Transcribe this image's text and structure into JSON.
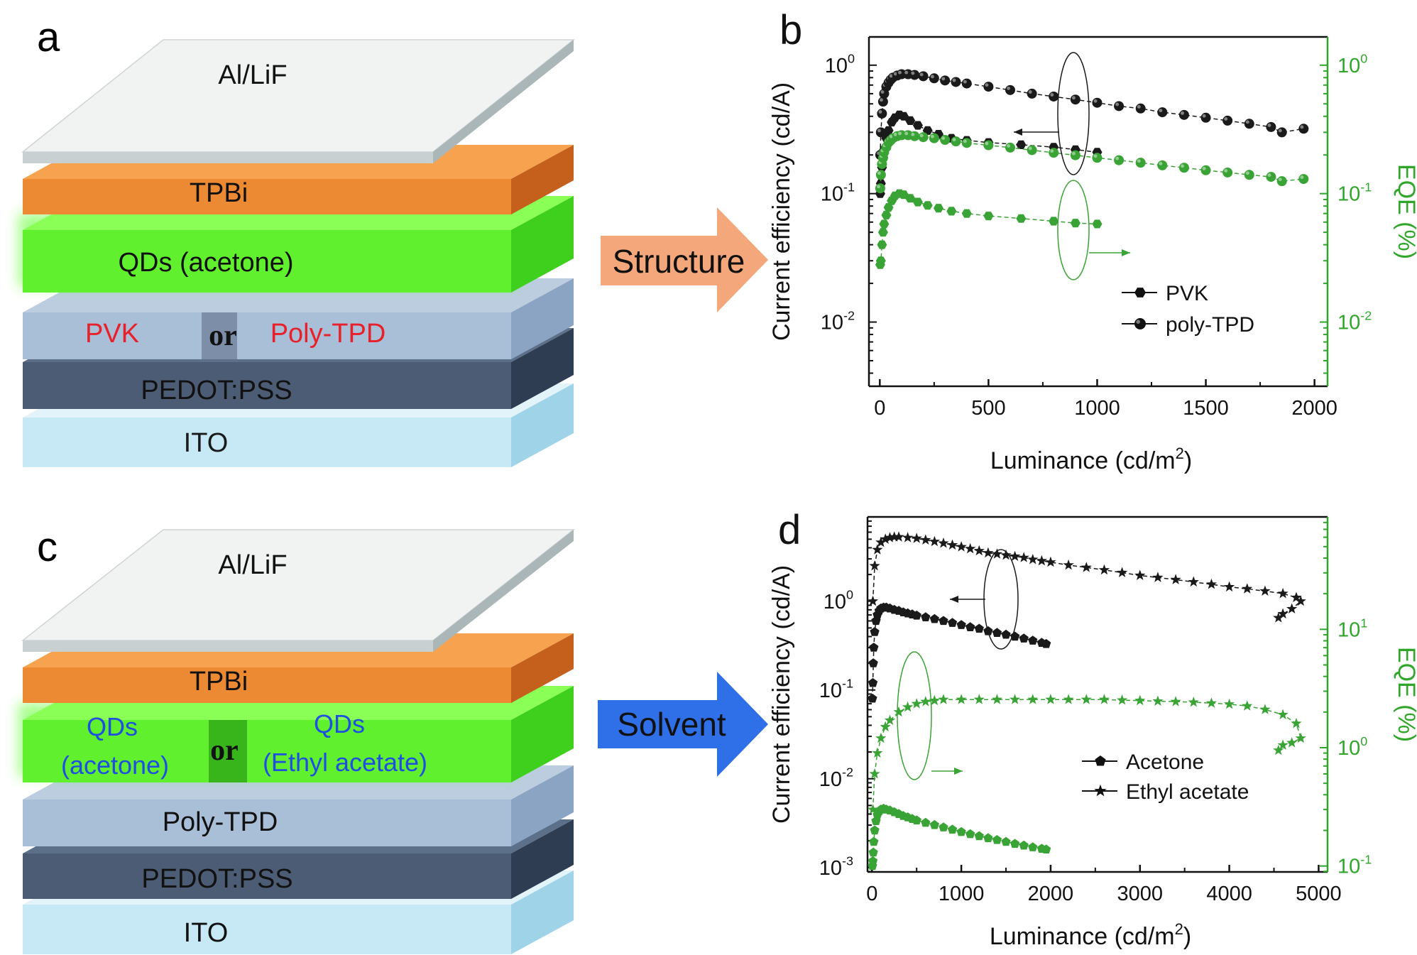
{
  "panels": {
    "a": {
      "letter": "a",
      "layers": {
        "top": "Al/LiF",
        "etl": "TPBi",
        "qd": "QDs (acetone)",
        "htl_left": "PVK",
        "or": "or",
        "htl_right": "Poly-TPD",
        "hil": "PEDOT:PSS",
        "anode": "ITO"
      },
      "arrow_label": "Structure"
    },
    "c": {
      "letter": "c",
      "layers": {
        "top": "Al/LiF",
        "etl": "TPBi",
        "qd_left": "QDs\n(acetone)",
        "qd_left_line1": "QDs",
        "qd_left_line2": "(acetone)",
        "or": "or",
        "qd_right_line1": "QDs",
        "qd_right_line2": "(Ethyl acetate)",
        "htl": "Poly-TPD",
        "hil": "PEDOT:PSS",
        "anode": "ITO"
      },
      "arrow_label": "Solvent"
    }
  },
  "colors": {
    "ce_series": "#1a1a1a",
    "eqe_series": "#3aa335",
    "eqe_axis": "#2fa62a",
    "arrow_structure": "#f4a77a",
    "arrow_solvent": "#2f6fe8",
    "red_text": "#e8202a",
    "blue_text": "#1f4fe0"
  },
  "chart_data": [
    {
      "id": "b",
      "letter": "b",
      "type": "scatter",
      "xlabel": "Luminance (cd/m",
      "xlabel_sup": "2",
      "xlabel_close": ")",
      "ylabel": "Current efficiency (cd/A)",
      "y2label": "EQE (%)",
      "xlim": [
        -50,
        2060
      ],
      "ylim_log10": [
        -2.5,
        0.22
      ],
      "y2lim_log10": [
        -2.5,
        0.22
      ],
      "xticks": [
        0,
        500,
        1000,
        1500,
        2000
      ],
      "xtick_labels": [
        "0",
        "500",
        "1000",
        "1500",
        "2000"
      ],
      "yticks_log10": [
        -2,
        -1,
        0
      ],
      "ytick_labels": [
        [
          "10",
          "-2"
        ],
        [
          "10",
          "-1"
        ],
        [
          "10",
          "0"
        ]
      ],
      "y2ticks_log10": [
        -2,
        -1,
        0
      ],
      "y2tick_labels": [
        [
          "10",
          "-2"
        ],
        [
          "10",
          "-1"
        ],
        [
          "10",
          "0"
        ]
      ],
      "legend": [
        {
          "label": "PVK",
          "marker": "hexagon"
        },
        {
          "label": "poly-TPD",
          "marker": "sphere"
        }
      ],
      "series": [
        {
          "name": "PVK CE",
          "axis": "left",
          "marker": "hexagon",
          "color": "#1a1a1a",
          "x": [
            2,
            5,
            10,
            15,
            20,
            30,
            40,
            55,
            70,
            90,
            110,
            140,
            175,
            220,
            270,
            330,
            400,
            500,
            650,
            800,
            900,
            1000
          ],
          "y": [
            0.1,
            0.12,
            0.16,
            0.19,
            0.22,
            0.27,
            0.31,
            0.36,
            0.39,
            0.41,
            0.4,
            0.37,
            0.34,
            0.31,
            0.29,
            0.27,
            0.26,
            0.25,
            0.24,
            0.23,
            0.22,
            0.21
          ]
        },
        {
          "name": "poly-TPD CE",
          "axis": "left",
          "marker": "sphere",
          "color": "#1a1a1a",
          "x": [
            2,
            5,
            10,
            15,
            20,
            30,
            40,
            50,
            60,
            80,
            100,
            130,
            160,
            200,
            250,
            300,
            350,
            400,
            500,
            600,
            700,
            800,
            900,
            1000,
            1100,
            1200,
            1300,
            1400,
            1500,
            1600,
            1700,
            1800,
            1850,
            1950
          ],
          "y": [
            0.2,
            0.3,
            0.42,
            0.52,
            0.6,
            0.68,
            0.73,
            0.77,
            0.8,
            0.83,
            0.85,
            0.85,
            0.84,
            0.82,
            0.79,
            0.76,
            0.74,
            0.72,
            0.68,
            0.64,
            0.6,
            0.57,
            0.54,
            0.51,
            0.48,
            0.46,
            0.43,
            0.41,
            0.39,
            0.37,
            0.35,
            0.33,
            0.3,
            0.32
          ]
        },
        {
          "name": "PVK EQE",
          "axis": "right",
          "marker": "hexagon",
          "color": "#3aa335",
          "x": [
            2,
            5,
            10,
            15,
            20,
            30,
            40,
            55,
            70,
            90,
            110,
            140,
            175,
            220,
            270,
            330,
            400,
            500,
            650,
            800,
            900,
            1000
          ],
          "y": [
            0.028,
            0.03,
            0.04,
            0.05,
            0.058,
            0.068,
            0.078,
            0.088,
            0.096,
            0.1,
            0.098,
            0.092,
            0.086,
            0.081,
            0.077,
            0.073,
            0.07,
            0.067,
            0.064,
            0.061,
            0.059,
            0.058
          ]
        },
        {
          "name": "poly-TPD EQE",
          "axis": "right",
          "marker": "sphere",
          "color": "#3aa335",
          "x": [
            2,
            5,
            10,
            15,
            20,
            30,
            40,
            50,
            60,
            80,
            100,
            130,
            160,
            200,
            250,
            300,
            350,
            400,
            500,
            600,
            700,
            800,
            900,
            1000,
            1100,
            1200,
            1300,
            1400,
            1500,
            1600,
            1700,
            1800,
            1850,
            1950
          ],
          "y": [
            0.11,
            0.14,
            0.17,
            0.19,
            0.21,
            0.23,
            0.25,
            0.26,
            0.27,
            0.28,
            0.285,
            0.285,
            0.28,
            0.275,
            0.27,
            0.262,
            0.255,
            0.248,
            0.238,
            0.228,
            0.218,
            0.208,
            0.199,
            0.19,
            0.182,
            0.174,
            0.166,
            0.159,
            0.152,
            0.146,
            0.14,
            0.135,
            0.125,
            0.13
          ]
        }
      ],
      "annotations": [
        {
          "type": "ellipse",
          "color": "#1a1a1a",
          "arrow": "left"
        },
        {
          "type": "ellipse",
          "color": "#3aa335",
          "arrow": "right"
        }
      ]
    },
    {
      "id": "d",
      "letter": "d",
      "type": "scatter",
      "xlabel": "Luminance (cd/m",
      "xlabel_sup": "2",
      "xlabel_close": ")",
      "ylabel": "Current efficiency (cd/A)",
      "y2label": "EQE (%)",
      "xlim": [
        -50,
        5100
      ],
      "ylim_log10": [
        -3.05,
        0.95
      ],
      "y2lim_log10": [
        -1.05,
        1.95
      ],
      "xticks": [
        0,
        1000,
        2000,
        3000,
        4000,
        5000
      ],
      "xtick_labels": [
        "0",
        "1000",
        "2000",
        "3000",
        "4000",
        "5000"
      ],
      "yticks_log10": [
        -3,
        -2,
        -1,
        0
      ],
      "ytick_labels": [
        [
          "10",
          "-3"
        ],
        [
          "10",
          "-2"
        ],
        [
          "10",
          "-1"
        ],
        [
          "10",
          "0"
        ]
      ],
      "y2ticks_log10": [
        -1,
        0,
        1
      ],
      "y2tick_labels": [
        [
          "10",
          "-1"
        ],
        [
          "10",
          "0"
        ],
        [
          "10",
          "1"
        ]
      ],
      "legend": [
        {
          "label": "Acetone",
          "marker": "pentagon"
        },
        {
          "label": "Ethyl acetate",
          "marker": "star"
        }
      ],
      "series": [
        {
          "name": "Acetone CE",
          "axis": "left",
          "marker": "pentagon",
          "color": "#1a1a1a",
          "x": [
            5,
            10,
            15,
            20,
            30,
            45,
            60,
            80,
            100,
            130,
            160,
            200,
            250,
            300,
            350,
            400,
            450,
            500,
            600,
            700,
            800,
            900,
            1000,
            1100,
            1200,
            1300,
            1400,
            1500,
            1600,
            1700,
            1800,
            1900,
            1950
          ],
          "y": [
            0.08,
            0.12,
            0.2,
            0.3,
            0.45,
            0.6,
            0.7,
            0.78,
            0.83,
            0.85,
            0.85,
            0.83,
            0.8,
            0.78,
            0.75,
            0.73,
            0.71,
            0.69,
            0.66,
            0.63,
            0.6,
            0.57,
            0.54,
            0.51,
            0.49,
            0.46,
            0.44,
            0.42,
            0.4,
            0.38,
            0.36,
            0.34,
            0.33
          ]
        },
        {
          "name": "Ethyl acetate CE",
          "axis": "left",
          "marker": "star",
          "color": "#1a1a1a",
          "x": [
            10,
            30,
            60,
            100,
            150,
            200,
            250,
            300,
            400,
            500,
            600,
            700,
            800,
            900,
            1000,
            1100,
            1200,
            1300,
            1400,
            1500,
            1600,
            1700,
            1800,
            1900,
            2000,
            2200,
            2400,
            2600,
            2800,
            3000,
            3200,
            3400,
            3600,
            3800,
            4000,
            4200,
            4400,
            4600,
            4750,
            4800,
            4700,
            4600,
            4550
          ],
          "y": [
            1.0,
            2.5,
            3.8,
            4.6,
            5.0,
            5.2,
            5.3,
            5.3,
            5.2,
            5.1,
            4.9,
            4.7,
            4.5,
            4.3,
            4.1,
            3.9,
            3.7,
            3.5,
            3.4,
            3.3,
            3.2,
            3.1,
            2.95,
            2.85,
            2.75,
            2.55,
            2.4,
            2.25,
            2.1,
            1.95,
            1.85,
            1.75,
            1.65,
            1.55,
            1.45,
            1.38,
            1.3,
            1.22,
            1.1,
            1.0,
            0.82,
            0.72,
            0.65
          ]
        },
        {
          "name": "Acetone EQE",
          "axis": "right",
          "marker": "pentagon",
          "color": "#3aa335",
          "x": [
            5,
            10,
            15,
            20,
            30,
            45,
            60,
            80,
            100,
            130,
            160,
            200,
            250,
            300,
            350,
            400,
            450,
            500,
            600,
            700,
            800,
            900,
            1000,
            1100,
            1200,
            1300,
            1400,
            1500,
            1600,
            1700,
            1800,
            1900,
            1950
          ],
          "y": [
            0.1,
            0.11,
            0.13,
            0.16,
            0.2,
            0.24,
            0.27,
            0.29,
            0.3,
            0.305,
            0.3,
            0.295,
            0.285,
            0.275,
            0.265,
            0.258,
            0.25,
            0.243,
            0.232,
            0.222,
            0.212,
            0.203,
            0.194,
            0.186,
            0.179,
            0.172,
            0.166,
            0.16,
            0.154,
            0.149,
            0.144,
            0.14,
            0.138
          ]
        },
        {
          "name": "Ethyl acetate EQE",
          "axis": "right",
          "marker": "star",
          "color": "#3aa335",
          "x": [
            10,
            30,
            60,
            100,
            150,
            200,
            300,
            400,
            500,
            600,
            700,
            800,
            1000,
            1200,
            1400,
            1600,
            1800,
            2000,
            2200,
            2400,
            2600,
            2800,
            3000,
            3200,
            3400,
            3600,
            3800,
            4000,
            4200,
            4400,
            4600,
            4750,
            4800,
            4700,
            4600,
            4550
          ],
          "y": [
            0.3,
            0.6,
            0.9,
            1.2,
            1.5,
            1.7,
            2.0,
            2.2,
            2.35,
            2.45,
            2.5,
            2.55,
            2.55,
            2.55,
            2.55,
            2.55,
            2.55,
            2.55,
            2.55,
            2.55,
            2.55,
            2.52,
            2.5,
            2.47,
            2.45,
            2.42,
            2.38,
            2.33,
            2.25,
            2.1,
            1.9,
            1.6,
            1.2,
            1.1,
            1.05,
            0.95
          ]
        }
      ],
      "annotations": [
        {
          "type": "ellipse",
          "color": "#1a1a1a",
          "arrow": "left"
        },
        {
          "type": "ellipse",
          "color": "#3aa335",
          "arrow": "right"
        }
      ]
    }
  ]
}
